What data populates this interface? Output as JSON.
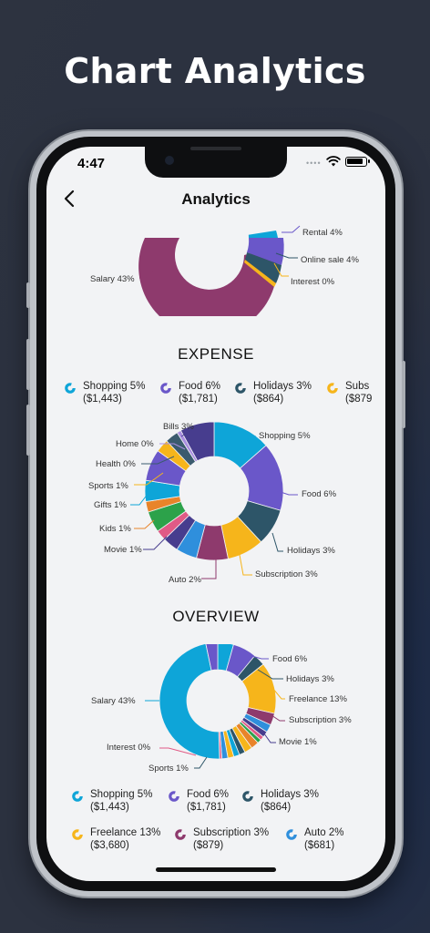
{
  "banner_title": "Chart Analytics",
  "status": {
    "time": "4:47"
  },
  "nav": {
    "title": "Analytics"
  },
  "colors": {
    "shopping": "#0ea5d8",
    "food": "#6a57c9",
    "holidays": "#2d5568",
    "subscription": "#8e3a6d",
    "freelance": "#f6b51b",
    "auto": "#2f8fdc",
    "salary": "#8e3a6d",
    "rental": "#6a57c9",
    "online_sale": "#2d5568",
    "interest": "#f6b51b",
    "bills": "#473d8e",
    "home": "#aa8fe0",
    "health": "#3b5b6e",
    "sports": "#f6b51b",
    "gifts": "#0ea5d8",
    "kids": "#e8842a",
    "movie": "#473d8e",
    "green": "#2ca24a",
    "pink": "#e05a86"
  },
  "income_chart": {
    "labels": [
      "Rental 4%",
      "Online sale 4%",
      "Interest 0%",
      "Salary 43%"
    ]
  },
  "expense": {
    "title": "EXPENSE",
    "legend": [
      {
        "name": "Shopping 5%",
        "amount": "($1,443)",
        "color": "#0ea5d8"
      },
      {
        "name": "Food 6%",
        "amount": "($1,781)",
        "color": "#6a57c9"
      },
      {
        "name": "Holidays 3%",
        "amount": "($864)",
        "color": "#2d5568"
      },
      {
        "name": "Subs",
        "amount": "($879",
        "color": "#f6b51b"
      }
    ],
    "chart_labels": [
      "Bills 3%",
      "Home 0%",
      "Health 0%",
      "Sports 1%",
      "Gifts 1%",
      "Kids 1%",
      "Movie 1%",
      "Auto 2%",
      "Subscription 3%",
      "Holidays 3%",
      "Food 6%",
      "Shopping 5%"
    ]
  },
  "overview": {
    "title": "OVERVIEW",
    "chart_labels": [
      "Food 6%",
      "Holidays 3%",
      "Freelance 13%",
      "Subscription 3%",
      "Movie 1%",
      "Salary 43%",
      "Interest 0%",
      "Sports 1%"
    ],
    "legend": [
      {
        "name": "Shopping 5%",
        "amount": "($1,443)",
        "color": "#0ea5d8"
      },
      {
        "name": "Food 6%",
        "amount": "($1,781)",
        "color": "#6a57c9"
      },
      {
        "name": "Holidays 3%",
        "amount": "($864)",
        "color": "#2d5568"
      },
      {
        "name": "Freelance 13%",
        "amount": "($3,680)",
        "color": "#f6b51b"
      },
      {
        "name": "Subscription 3%",
        "amount": "($879)",
        "color": "#8e3a6d"
      },
      {
        "name": "Auto 2%",
        "amount": "($681)",
        "color": "#2f8fdc"
      }
    ]
  }
}
